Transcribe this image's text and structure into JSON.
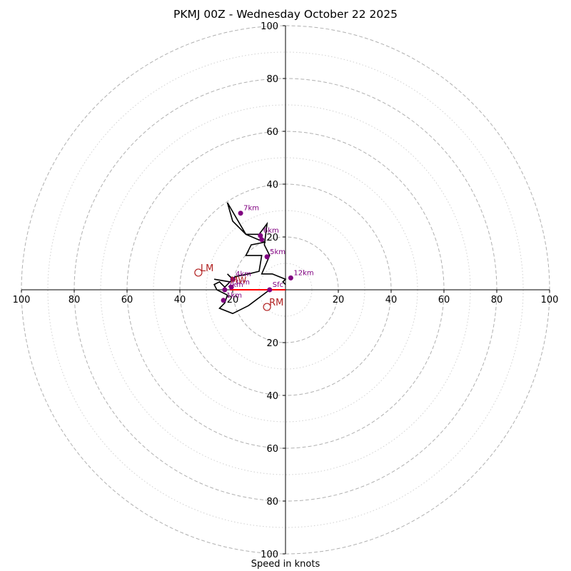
{
  "chart_data": {
    "type": "hodograph",
    "title": "PKMJ 00Z - Wednesday October 22 2025",
    "xlabel": "Speed in knots",
    "units": "kt",
    "ring_labels": [
      "20",
      "40",
      "60",
      "80",
      "100"
    ],
    "x_tick_labels": [
      "100",
      "80",
      "60",
      "40",
      "20",
      "20",
      "40",
      "60",
      "80",
      "100"
    ],
    "y_tick_labels": [
      "100",
      "80",
      "60",
      "40",
      "20",
      "20",
      "40",
      "60",
      "80",
      "100"
    ],
    "ring_values": [
      20,
      40,
      60,
      80,
      100
    ],
    "minor_ring_values": [
      10,
      30,
      50,
      70,
      90
    ],
    "axis_range": [
      -100,
      100
    ],
    "hodograph_trace": [
      [
        -6,
        0
      ],
      [
        -14,
        -6
      ],
      [
        -20,
        -9
      ],
      [
        -25,
        -7
      ],
      [
        -23,
        -5
      ],
      [
        -22,
        -2
      ],
      [
        -26,
        0
      ],
      [
        -27,
        2
      ],
      [
        -25,
        3
      ],
      [
        -23,
        1
      ],
      [
        -21,
        3
      ],
      [
        -27,
        4
      ],
      [
        -21,
        3
      ],
      [
        -20,
        4
      ],
      [
        -22,
        6
      ],
      [
        -21,
        5
      ],
      [
        -20,
        4
      ],
      [
        -19,
        5
      ],
      [
        -14,
        6
      ],
      [
        -10,
        7
      ],
      [
        -9,
        13
      ],
      [
        -10,
        13
      ],
      [
        -15,
        13
      ],
      [
        -13,
        17
      ],
      [
        -8,
        18
      ],
      [
        -15,
        21
      ],
      [
        -20,
        26
      ],
      [
        -22,
        33
      ],
      [
        -15,
        21
      ],
      [
        -10,
        21
      ],
      [
        -7,
        25
      ],
      [
        -8,
        17
      ],
      [
        -6,
        13
      ],
      [
        -9,
        6
      ],
      [
        -5,
        6
      ],
      [
        0,
        4
      ],
      [
        -1,
        3
      ],
      [
        0,
        2
      ]
    ],
    "height_markers": [
      {
        "label": "Sfc",
        "u": -6,
        "v": 0
      },
      {
        "label": "1km",
        "u": -23.5,
        "v": -4
      },
      {
        "label": "2km",
        "u": -23,
        "v": 0
      },
      {
        "label": "3km",
        "u": -20.5,
        "v": 1
      },
      {
        "label": "4km",
        "u": -20,
        "v": 4
      },
      {
        "label": "5km",
        "u": -7,
        "v": 12.5
      },
      {
        "label": "6km",
        "u": -9.5,
        "v": 20.5
      },
      {
        "label": "",
        "u": -9,
        "v": 19
      },
      {
        "label": "7km",
        "u": -17,
        "v": 29
      },
      {
        "label": "12km",
        "u": 2,
        "v": 4.5
      }
    ],
    "storm_motion": [
      {
        "label": "RM",
        "u": -7,
        "v": -6.5
      },
      {
        "label": "LM",
        "u": -33,
        "v": 6.5
      }
    ],
    "mean_wind": {
      "label": "MW",
      "u": -20,
      "v": 2
    },
    "shear_vector": {
      "u_from": 0,
      "v_from": 0,
      "u_to": -21,
      "v_to": 0
    }
  },
  "colors": {
    "trace": "#000000",
    "marker": "#800080",
    "storm_motion": "#b22222",
    "shear": "#ff0000",
    "ring_major": "#b0b0b0",
    "ring_minor": "#d0d0d0",
    "axis": "#000000"
  }
}
